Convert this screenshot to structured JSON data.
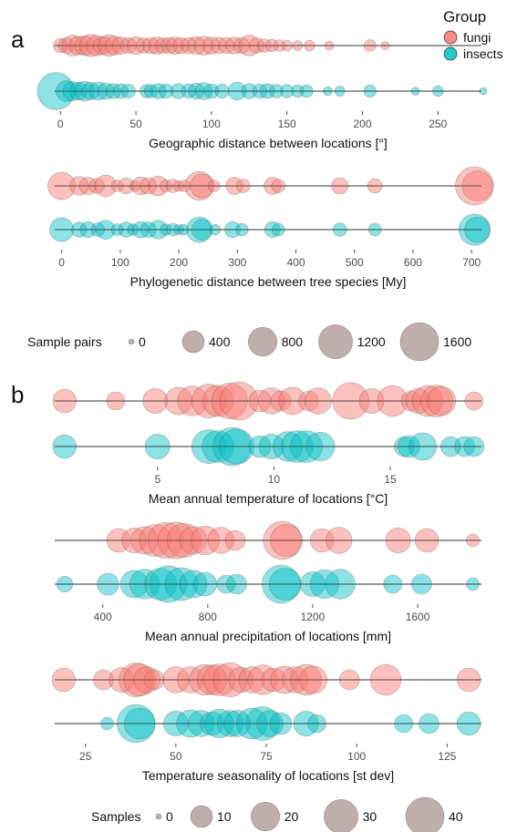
{
  "panel_labels": [
    "a",
    "b"
  ],
  "legend_group": {
    "title": "Group",
    "items": [
      {
        "label": "fungi",
        "color": "#f8766d"
      },
      {
        "label": "insects",
        "color": "#00bfc4"
      }
    ]
  },
  "legend_pairs": {
    "title": "Sample pairs",
    "values": [
      0,
      400,
      800,
      1200,
      1600
    ],
    "color": "#8b6b6b"
  },
  "legend_samples": {
    "title": "Samples",
    "values": [
      0,
      10,
      20,
      30,
      40
    ],
    "color": "#8b6b6b"
  },
  "chart_data": [
    {
      "type": "scatter",
      "xlabel": "Geographic distance between locations [°]",
      "xlim": [
        -5,
        280
      ],
      "xticks": [
        0,
        50,
        100,
        150,
        200,
        250
      ],
      "size_legend": "pairs",
      "series": [
        {
          "name": "fungi",
          "color": "#f8766d",
          "points": [
            [
              0,
              120
            ],
            [
              4,
              150
            ],
            [
              8,
              350
            ],
            [
              12,
              260
            ],
            [
              16,
              300
            ],
            [
              20,
              420
            ],
            [
              24,
              330
            ],
            [
              28,
              250
            ],
            [
              32,
              380
            ],
            [
              36,
              260
            ],
            [
              40,
              200
            ],
            [
              45,
              160
            ],
            [
              50,
              220
            ],
            [
              55,
              140
            ],
            [
              60,
              180
            ],
            [
              64,
              200
            ],
            [
              68,
              150
            ],
            [
              72,
              170
            ],
            [
              76,
              210
            ],
            [
              80,
              180
            ],
            [
              85,
              160
            ],
            [
              90,
              230
            ],
            [
              95,
              280
            ],
            [
              100,
              200
            ],
            [
              105,
              170
            ],
            [
              110,
              160
            ],
            [
              115,
              190
            ],
            [
              120,
              160
            ],
            [
              125,
              350
            ],
            [
              130,
              140
            ],
            [
              135,
              100
            ],
            [
              140,
              70
            ],
            [
              145,
              60
            ],
            [
              150,
              40
            ],
            [
              157,
              25
            ],
            [
              165,
              40
            ],
            [
              178,
              20
            ],
            [
              205,
              60
            ],
            [
              215,
              10
            ]
          ]
        },
        {
          "name": "insects",
          "color": "#00bfc4",
          "points": [
            [
              -3,
              1500
            ],
            [
              4,
              350
            ],
            [
              8,
              280
            ],
            [
              12,
              220
            ],
            [
              16,
              300
            ],
            [
              20,
              200
            ],
            [
              25,
              240
            ],
            [
              30,
              180
            ],
            [
              35,
              140
            ],
            [
              40,
              130
            ],
            [
              45,
              110
            ],
            [
              57,
              90
            ],
            [
              60,
              100
            ],
            [
              65,
              140
            ],
            [
              70,
              120
            ],
            [
              78,
              140
            ],
            [
              85,
              120
            ],
            [
              90,
              160
            ],
            [
              95,
              200
            ],
            [
              100,
              120
            ],
            [
              107,
              110
            ],
            [
              117,
              230
            ],
            [
              125,
              140
            ],
            [
              132,
              120
            ],
            [
              137,
              130
            ],
            [
              143,
              100
            ],
            [
              150,
              90
            ],
            [
              157,
              70
            ],
            [
              163,
              80
            ],
            [
              177,
              20
            ],
            [
              185,
              30
            ],
            [
              205,
              70
            ],
            [
              235,
              10
            ],
            [
              250,
              40
            ],
            [
              280,
              5
            ]
          ]
        }
      ]
    },
    {
      "type": "scatter",
      "xlabel": "Phylogenetic distance between tree species [My]",
      "xlim": [
        -15,
        720
      ],
      "xticks": [
        0,
        100,
        200,
        300,
        400,
        500,
        600,
        700
      ],
      "size_legend": "pairs",
      "series": [
        {
          "name": "fungi",
          "color": "#f8766d",
          "points": [
            [
              0,
              720
            ],
            [
              30,
              260
            ],
            [
              45,
              200
            ],
            [
              60,
              140
            ],
            [
              75,
              380
            ],
            [
              95,
              60
            ],
            [
              110,
              160
            ],
            [
              125,
              40
            ],
            [
              135,
              220
            ],
            [
              148,
              180
            ],
            [
              165,
              300
            ],
            [
              178,
              60
            ],
            [
              190,
              90
            ],
            [
              200,
              40
            ],
            [
              210,
              60
            ],
            [
              235,
              800
            ],
            [
              240,
              500
            ],
            [
              260,
              60
            ],
            [
              295,
              200
            ],
            [
              310,
              100
            ],
            [
              360,
              200
            ],
            [
              370,
              100
            ],
            [
              475,
              180
            ],
            [
              535,
              120
            ],
            [
              705,
              1600
            ],
            [
              710,
              900
            ]
          ]
        },
        {
          "name": "insects",
          "color": "#00bfc4",
          "points": [
            [
              0,
              500
            ],
            [
              30,
              140
            ],
            [
              45,
              160
            ],
            [
              62,
              100
            ],
            [
              75,
              280
            ],
            [
              95,
              60
            ],
            [
              110,
              140
            ],
            [
              122,
              50
            ],
            [
              135,
              180
            ],
            [
              148,
              150
            ],
            [
              165,
              260
            ],
            [
              178,
              50
            ],
            [
              190,
              70
            ],
            [
              200,
              30
            ],
            [
              208,
              40
            ],
            [
              235,
              600
            ],
            [
              240,
              350
            ],
            [
              262,
              40
            ],
            [
              292,
              160
            ],
            [
              308,
              70
            ],
            [
              360,
              160
            ],
            [
              370,
              80
            ],
            [
              475,
              100
            ],
            [
              535,
              80
            ],
            [
              705,
              1000
            ],
            [
              710,
              600
            ]
          ]
        }
      ]
    },
    {
      "type": "scatter",
      "xlabel": "Mean annual temperature of locations [°C]",
      "xlim": [
        0.5,
        19
      ],
      "xticks": [
        5,
        10,
        15
      ],
      "size_legend": "samples",
      "series": [
        {
          "name": "fungi",
          "color": "#f8766d",
          "points": [
            [
              1.0,
              12
            ],
            [
              3.2,
              6
            ],
            [
              4.9,
              14
            ],
            [
              5.9,
              18
            ],
            [
              6.5,
              22
            ],
            [
              7.2,
              30
            ],
            [
              7.6,
              24
            ],
            [
              8.1,
              34
            ],
            [
              8.5,
              40
            ],
            [
              9.4,
              10
            ],
            [
              9.9,
              16
            ],
            [
              10.3,
              8
            ],
            [
              10.8,
              18
            ],
            [
              11.5,
              8
            ],
            [
              11.9,
              16
            ],
            [
              13.3,
              36
            ],
            [
              14.2,
              14
            ],
            [
              15.1,
              24
            ],
            [
              15.9,
              8
            ],
            [
              16.2,
              14
            ],
            [
              16.6,
              24
            ],
            [
              17.0,
              26
            ],
            [
              17.2,
              20
            ],
            [
              18.6,
              6
            ]
          ]
        },
        {
          "name": "insects",
          "color": "#00bfc4",
          "points": [
            [
              1.0,
              12
            ],
            [
              5.0,
              14
            ],
            [
              7.2,
              30
            ],
            [
              7.6,
              26
            ],
            [
              8.2,
              40
            ],
            [
              8.4,
              32
            ],
            [
              9.4,
              10
            ],
            [
              9.9,
              14
            ],
            [
              10.6,
              22
            ],
            [
              11.0,
              26
            ],
            [
              11.4,
              26
            ],
            [
              12.0,
              20
            ],
            [
              15.6,
              8
            ],
            [
              15.8,
              10
            ],
            [
              16.4,
              18
            ],
            [
              17.6,
              8
            ],
            [
              18.2,
              8
            ],
            [
              18.6,
              8
            ]
          ]
        }
      ]
    },
    {
      "type": "scatter",
      "xlabel": "Mean annual precipitation of locations [mm]",
      "xlim": [
        210,
        1850
      ],
      "xticks": [
        400,
        800,
        1200,
        1600
      ],
      "size_legend": "samples",
      "series": [
        {
          "name": "fungi",
          "color": "#f8766d",
          "points": [
            [
              460,
              12
            ],
            [
              520,
              14
            ],
            [
              560,
              18
            ],
            [
              600,
              26
            ],
            [
              640,
              34
            ],
            [
              680,
              36
            ],
            [
              710,
              30
            ],
            [
              745,
              18
            ],
            [
              790,
              20
            ],
            [
              850,
              16
            ],
            [
              905,
              8
            ],
            [
              1085,
              40
            ],
            [
              1100,
              26
            ],
            [
              1235,
              12
            ],
            [
              1300,
              16
            ],
            [
              1525,
              14
            ],
            [
              1635,
              12
            ],
            [
              1810,
              2
            ]
          ]
        },
        {
          "name": "insects",
          "color": "#00bfc4",
          "points": [
            [
              255,
              4
            ],
            [
              420,
              10
            ],
            [
              520,
              18
            ],
            [
              560,
              22
            ],
            [
              620,
              26
            ],
            [
              650,
              36
            ],
            [
              700,
              28
            ],
            [
              745,
              18
            ],
            [
              790,
              12
            ],
            [
              870,
              6
            ],
            [
              910,
              8
            ],
            [
              1080,
              40
            ],
            [
              1095,
              26
            ],
            [
              1200,
              14
            ],
            [
              1245,
              20
            ],
            [
              1305,
              22
            ],
            [
              1505,
              6
            ],
            [
              1615,
              8
            ],
            [
              1810,
              2
            ]
          ]
        }
      ]
    },
    {
      "type": "scatter",
      "xlabel": "Temperature seasonality of locations [st dev]",
      "xlim": [
        16,
        135
      ],
      "xticks": [
        25,
        50,
        75,
        100,
        125
      ],
      "size_legend": "samples",
      "series": [
        {
          "name": "fungi",
          "color": "#f8766d",
          "points": [
            [
              19,
              12
            ],
            [
              30,
              8
            ],
            [
              35,
              14
            ],
            [
              39,
              30
            ],
            [
              40,
              26
            ],
            [
              42,
              16
            ],
            [
              44,
              8
            ],
            [
              50,
              16
            ],
            [
              54,
              16
            ],
            [
              58,
              24
            ],
            [
              60,
              22
            ],
            [
              62,
              26
            ],
            [
              65,
              30
            ],
            [
              68,
              14
            ],
            [
              71,
              16
            ],
            [
              74,
              22
            ],
            [
              77,
              12
            ],
            [
              80,
              18
            ],
            [
              83,
              16
            ],
            [
              86,
              24
            ],
            [
              88,
              18
            ],
            [
              98,
              8
            ],
            [
              108,
              24
            ],
            [
              131,
              12
            ]
          ]
        },
        {
          "name": "insects",
          "color": "#00bfc4",
          "points": [
            [
              31,
              2
            ],
            [
              39,
              40
            ],
            [
              40,
              24
            ],
            [
              50,
              14
            ],
            [
              54,
              18
            ],
            [
              57,
              16
            ],
            [
              60,
              12
            ],
            [
              62,
              20
            ],
            [
              65,
              16
            ],
            [
              67,
              16
            ],
            [
              71,
              24
            ],
            [
              74,
              30
            ],
            [
              76,
              16
            ],
            [
              79,
              10
            ],
            [
              86,
              14
            ],
            [
              89,
              6
            ],
            [
              113,
              6
            ],
            [
              120,
              8
            ],
            [
              131,
              12
            ]
          ]
        }
      ]
    }
  ]
}
